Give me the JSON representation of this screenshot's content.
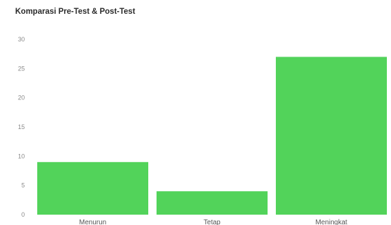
{
  "chart_data": {
    "type": "bar",
    "title": "Komparasi Pre-Test & Post-Test",
    "categories": [
      "Menurun",
      "Tetap",
      "Meningkat"
    ],
    "values": [
      9,
      4,
      27
    ],
    "ylim": [
      0,
      30
    ],
    "yticks": [
      0,
      5,
      10,
      15,
      20,
      25,
      30
    ],
    "grid": false,
    "legend": "none",
    "color": "#52d35a"
  }
}
